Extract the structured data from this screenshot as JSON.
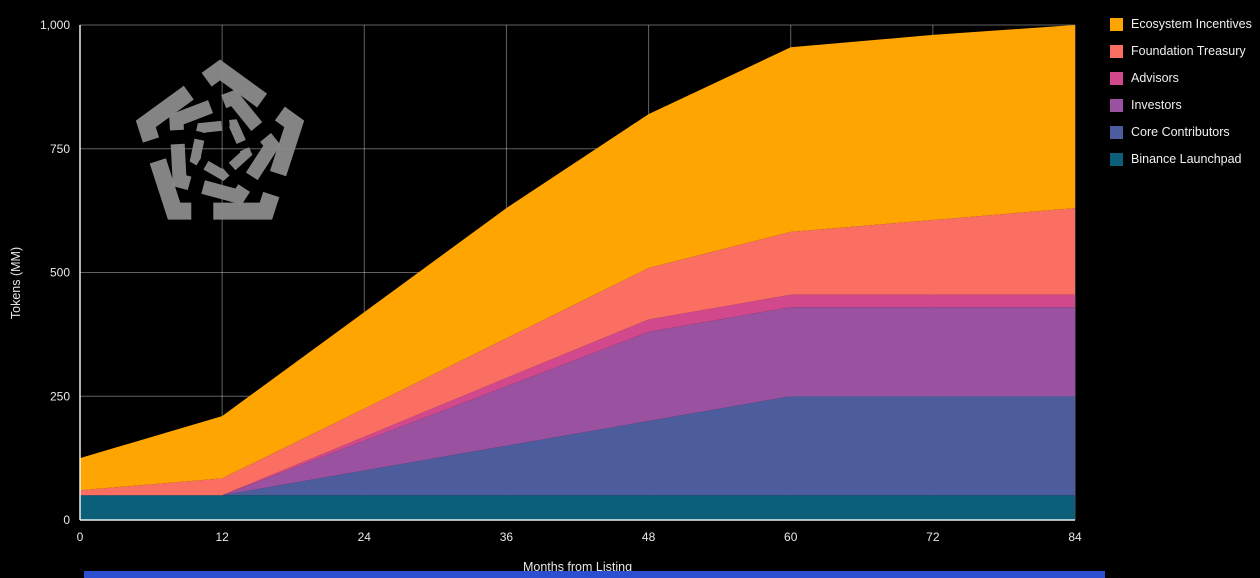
{
  "page": {
    "background": "#000000",
    "footer_bar_color": "#2b4fd0"
  },
  "logo": {
    "name": "pentagon-logo",
    "color": "#8b8b8b"
  },
  "chart_data": {
    "type": "area",
    "stacked": true,
    "title": "",
    "xlabel": "Months from Listing",
    "ylabel": "Tokens (MM)",
    "grid": true,
    "legend_position": "top-right",
    "xlim": [
      0,
      84
    ],
    "ylim": [
      0,
      1000
    ],
    "x": [
      0,
      12,
      24,
      36,
      48,
      60,
      72,
      84
    ],
    "x_ticks": [
      0,
      12,
      24,
      36,
      48,
      60,
      72,
      84
    ],
    "y_ticks": [
      0,
      250,
      500,
      750,
      1000
    ],
    "y_tick_labels": [
      "0",
      "250",
      "500",
      "750",
      "1,000"
    ],
    "series": [
      {
        "name": "Binance Launchpad",
        "color": "#0b5f78",
        "values": [
          50,
          50,
          50,
          50,
          50,
          50,
          50,
          50
        ]
      },
      {
        "name": "Core Contributors",
        "color": "#4c5c9c",
        "values": [
          0,
          0,
          50,
          100,
          150,
          200,
          200,
          200
        ]
      },
      {
        "name": "Investors",
        "color": "#9a52a0",
        "values": [
          0,
          0,
          60,
          120,
          180,
          180,
          180,
          180
        ]
      },
      {
        "name": "Advisors",
        "color": "#d1498c",
        "values": [
          0,
          0,
          8,
          17,
          25,
          25,
          25,
          25
        ]
      },
      {
        "name": "Foundation Treasury",
        "color": "#fa6f62",
        "values": [
          10,
          34,
          57,
          80,
          104,
          127,
          151,
          175
        ]
      },
      {
        "name": "Ecosystem Incentives",
        "color": "#ffa502",
        "values": [
          65,
          126,
          195,
          263,
          311,
          373,
          374,
          370
        ]
      }
    ]
  }
}
